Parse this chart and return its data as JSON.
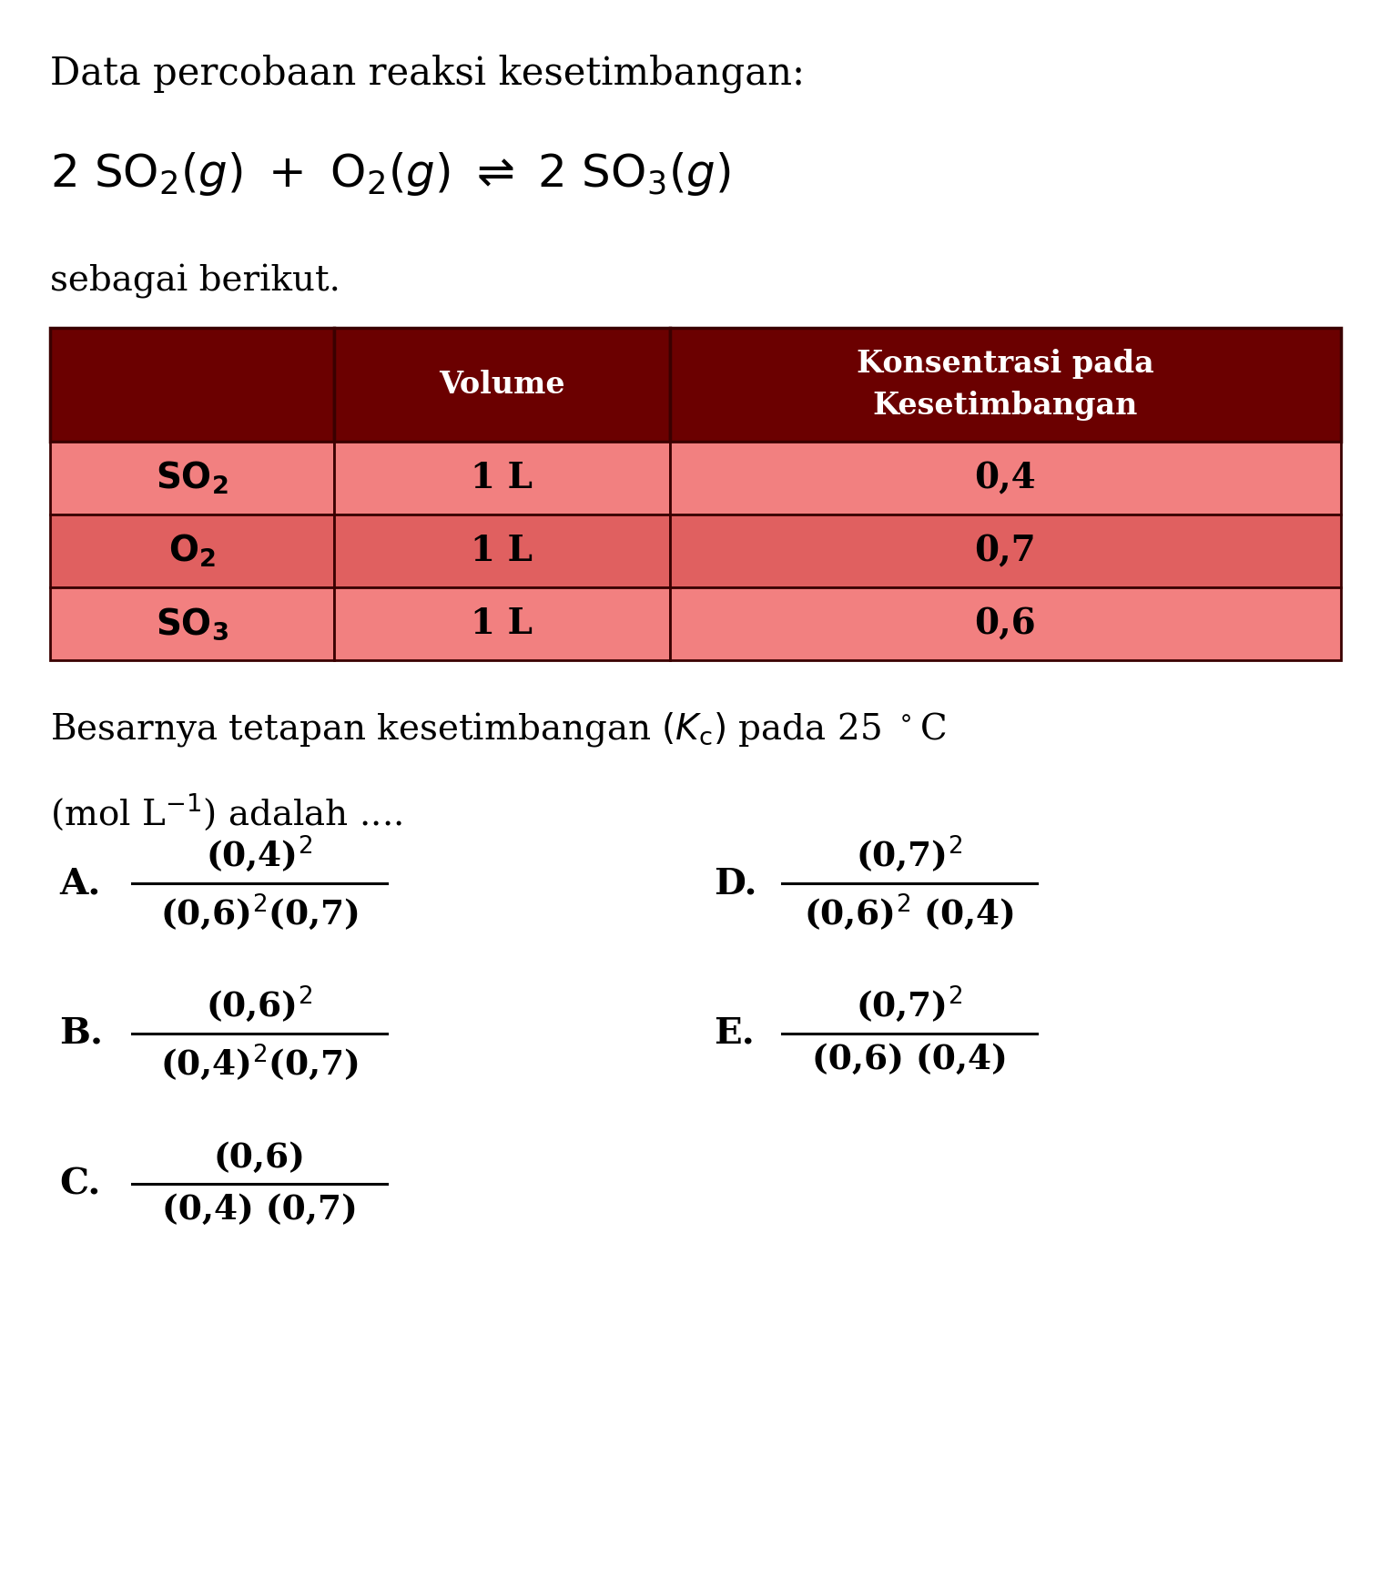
{
  "title_line1": "Data percobaan reaksi kesetimbangan:",
  "subtitle": "sebagai berikut.",
  "table_header_col2": "Volume",
  "table_header_col3": "Konsentrasi pada\nKesetimbangan",
  "table_rows": [
    [
      "SO₂",
      "1 L",
      "0,4"
    ],
    [
      "O₂",
      "1 L",
      "0,7"
    ],
    [
      "SO₃",
      "1 L",
      "0,6"
    ]
  ],
  "options": [
    {
      "label": "A.",
      "num": "(0,4)^2",
      "den": "(0,6)^2(0,7)"
    },
    {
      "label": "B.",
      "num": "(0,6)^2",
      "den": "(0,4)^2(0,7)"
    },
    {
      "label": "C.",
      "num": "(0,6)",
      "den": "(0,4) (0,7)"
    },
    {
      "label": "D.",
      "num": "(0,7)^2",
      "den": "(0,6)^2 (0,4)"
    },
    {
      "label": "E.",
      "num": "(0,7)^2",
      "den": "(0,6) (0,4)"
    }
  ],
  "header_bg": "#6b0000",
  "row_bg_even": "#f28080",
  "row_bg_odd": "#e06060",
  "border_color": "#3a0000",
  "header_text_color": "#ffffff",
  "row_text_color": "#000000",
  "bg_color": "#ffffff",
  "text_color": "#000000",
  "fig_width": 15.28,
  "fig_height": 17.23
}
